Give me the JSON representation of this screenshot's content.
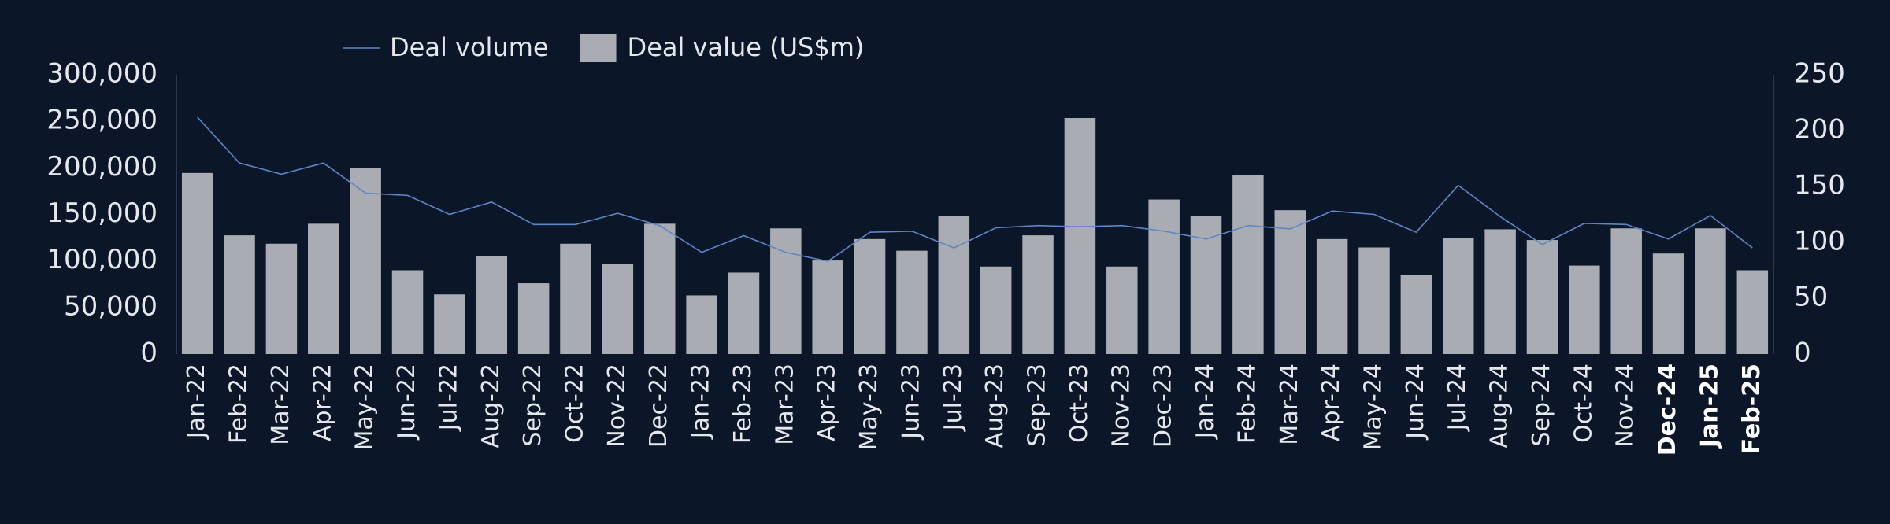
{
  "chart_data": {
    "type": "bar-line",
    "categories": [
      "Jan-22",
      "Feb-22",
      "Mar-22",
      "Apr-22",
      "May-22",
      "Jun-22",
      "Jul-22",
      "Aug-22",
      "Sep-22",
      "Oct-22",
      "Nov-22",
      "Dec-22",
      "Jan-23",
      "Feb-23",
      "Mar-23",
      "Apr-23",
      "May-23",
      "Jun-23",
      "Jul-23",
      "Aug-23",
      "Sep-23",
      "Oct-23",
      "Nov-23",
      "Dec-23",
      "Jan-24",
      "Feb-24",
      "Mar-24",
      "Apr-24",
      "May-24",
      "Jun-24",
      "Jul-24",
      "Aug-24",
      "Sep-24",
      "Oct-24",
      "Nov-24",
      "Dec-24",
      "Jan-25",
      "Feb-25"
    ],
    "series": [
      {
        "name": "Deal volume",
        "type": "line",
        "axis": "y2",
        "color": "#5d86c4",
        "values": [
          212,
          171,
          161,
          171,
          144,
          142,
          125,
          136,
          116,
          116,
          126,
          115,
          91,
          106,
          91,
          83,
          109,
          110,
          95,
          113,
          115,
          114,
          115,
          110,
          103,
          115,
          112,
          128,
          125,
          109,
          151,
          123,
          98,
          117,
          116,
          103,
          124,
          95
        ]
      },
      {
        "name": "Deal value (US$m)",
        "type": "bar",
        "axis": "y",
        "color": "#a9adb3",
        "values": [
          194500,
          127500,
          118500,
          140000,
          200000,
          90000,
          64000,
          105000,
          76000,
          118500,
          96500,
          140000,
          63000,
          87500,
          135000,
          100500,
          123500,
          111000,
          148000,
          94000,
          127500,
          253500,
          94000,
          166000,
          148000,
          192000,
          154500,
          123500,
          114500,
          85000,
          125000,
          134000,
          122500,
          95000,
          135000,
          108000,
          135000,
          90000
        ]
      }
    ],
    "ylim": [
      0,
      300000
    ],
    "yticks": [
      0,
      {
        "value": 50000,
        "label": "50,000"
      },
      {
        "value": 100000,
        "label": "100,000"
      },
      {
        "value": 150000,
        "label": "150,000"
      },
      {
        "value": 200000,
        "label": "200,000"
      },
      {
        "value": 250000,
        "label": "250,000"
      },
      {
        "value": 300000,
        "label": "300,000"
      }
    ],
    "y2lim": [
      0,
      250
    ],
    "y2ticks": [
      0,
      50,
      100,
      150,
      200,
      250
    ],
    "legend": "top"
  }
}
